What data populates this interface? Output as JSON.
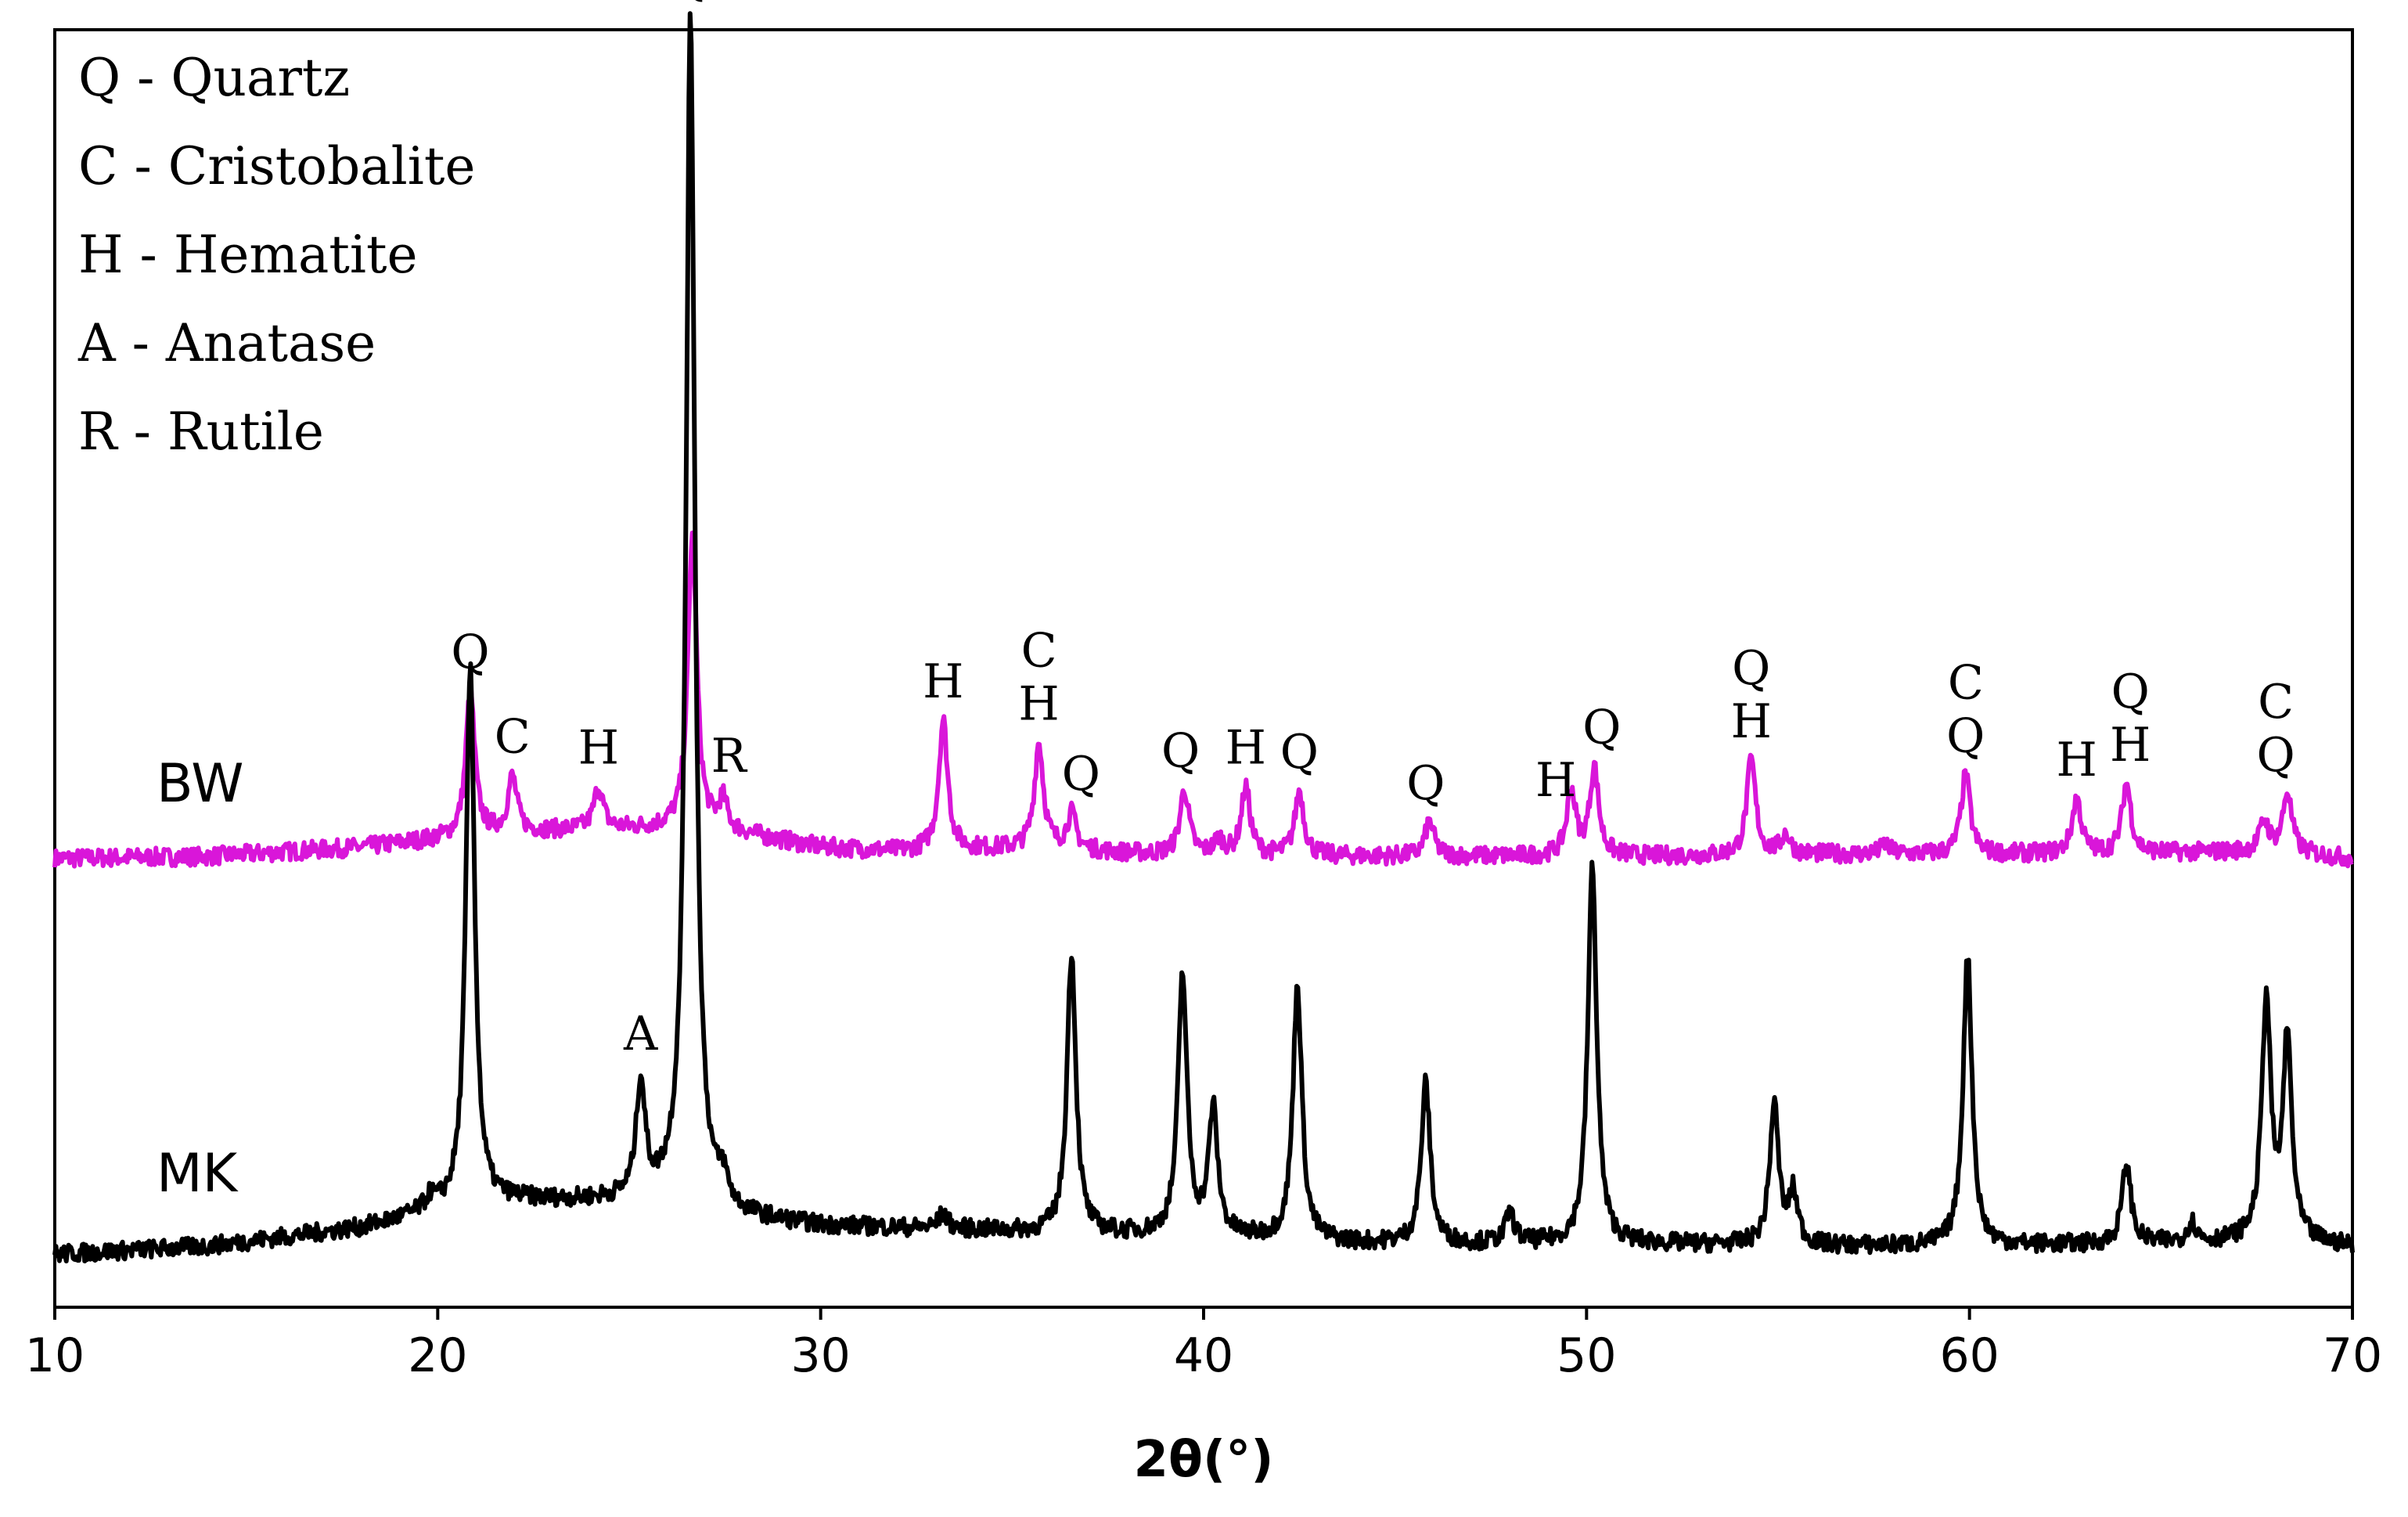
{
  "chart_data": {
    "type": "line",
    "title": "",
    "xlabel": "2θ(°)",
    "ylabel": "",
    "xlim": [
      10,
      70
    ],
    "x_ticks": [
      "10",
      "20",
      "30",
      "40",
      "50",
      "60",
      "70"
    ],
    "grid": false,
    "legend_entries": [
      "Q - Quartz",
      "C - Cristobalite",
      "H - Hematite",
      "A - Anatase",
      "R - Rutile"
    ],
    "legend_position": "top-left",
    "series": [
      {
        "name": "BW",
        "color": "#d916d9",
        "baseline_points": [
          [
            10,
            0.26
          ],
          [
            14,
            0.28
          ],
          [
            18,
            0.37
          ],
          [
            20,
            0.45
          ],
          [
            22,
            0.52
          ],
          [
            24,
            0.55
          ],
          [
            26,
            0.56
          ],
          [
            28,
            0.5
          ],
          [
            30,
            0.37
          ],
          [
            32,
            0.33
          ],
          [
            34,
            0.35
          ],
          [
            36,
            0.36
          ],
          [
            38,
            0.31
          ],
          [
            40,
            0.29
          ],
          [
            44,
            0.28
          ],
          [
            48,
            0.28
          ],
          [
            52,
            0.28
          ],
          [
            56,
            0.3
          ],
          [
            60,
            0.3
          ],
          [
            64,
            0.31
          ],
          [
            68,
            0.33
          ],
          [
            70,
            0.26
          ]
        ],
        "peaks": [
          [
            20.85,
            1.45
          ],
          [
            21.95,
            0.55
          ],
          [
            24.2,
            0.42
          ],
          [
            26.65,
            2.95
          ],
          [
            27.45,
            0.3
          ],
          [
            33.2,
            1.3
          ],
          [
            35.7,
            1.05
          ],
          [
            36.55,
            0.35
          ],
          [
            39.5,
            0.65
          ],
          [
            40.4,
            0.15
          ],
          [
            41.1,
            0.68
          ],
          [
            42.5,
            0.65
          ],
          [
            45.9,
            0.35
          ],
          [
            49.6,
            0.65
          ],
          [
            50.2,
            0.88
          ],
          [
            54.3,
            0.95
          ],
          [
            55.2,
            0.2
          ],
          [
            57.8,
            0.1
          ],
          [
            59.9,
            0.8
          ],
          [
            62.8,
            0.55
          ],
          [
            64.1,
            0.7
          ],
          [
            67.7,
            0.3
          ],
          [
            68.3,
            0.6
          ]
        ]
      },
      {
        "name": "MK",
        "color": "#000000",
        "baseline_points": [
          [
            10,
            0.02
          ],
          [
            14,
            0.1
          ],
          [
            18,
            0.28
          ],
          [
            20,
            0.45
          ],
          [
            22,
            0.55
          ],
          [
            24,
            0.55
          ],
          [
            26,
            0.55
          ],
          [
            28,
            0.38
          ],
          [
            30,
            0.3
          ],
          [
            32,
            0.28
          ],
          [
            34,
            0.26
          ],
          [
            36,
            0.23
          ],
          [
            40,
            0.2
          ],
          [
            44,
            0.13
          ],
          [
            48,
            0.12
          ],
          [
            52,
            0.12
          ],
          [
            56,
            0.1
          ],
          [
            60,
            0.1
          ],
          [
            64,
            0.12
          ],
          [
            68,
            0.15
          ],
          [
            70,
            0.1
          ]
        ],
        "peaks": [
          [
            19.8,
            0.12
          ],
          [
            20.85,
            5.35
          ],
          [
            25.3,
            1.15
          ],
          [
            26.6,
            11.85
          ],
          [
            27.45,
            0.25
          ],
          [
            33.2,
            0.15
          ],
          [
            36.55,
            2.8
          ],
          [
            39.45,
            2.6
          ],
          [
            40.25,
            1.25
          ],
          [
            42.45,
            2.55
          ],
          [
            45.8,
            1.6
          ],
          [
            48.0,
            0.3
          ],
          [
            50.15,
            3.75
          ],
          [
            54.9,
            1.4
          ],
          [
            55.4,
            0.5
          ],
          [
            59.95,
            2.9
          ],
          [
            64.1,
            0.8
          ],
          [
            65.8,
            0.2
          ],
          [
            67.75,
            2.4
          ],
          [
            68.3,
            2.0
          ]
        ]
      }
    ],
    "series_labels": [
      "BW",
      "MK"
    ],
    "annotations": [
      {
        "text": "Q",
        "x": 26.6,
        "series": "MK"
      },
      {
        "text": "A",
        "x": 25.3,
        "series": "MK"
      },
      {
        "text": "Q",
        "x": 20.85,
        "series": "BW"
      },
      {
        "text": "C",
        "x": 21.95,
        "series": "BW"
      },
      {
        "text": "H",
        "x": 24.2,
        "series": "BW"
      },
      {
        "text": "R",
        "x": 27.6,
        "series": "BW"
      },
      {
        "text": "H",
        "x": 33.2,
        "series": "BW"
      },
      {
        "text": "C\nH",
        "x": 35.7,
        "series": "BW"
      },
      {
        "text": "Q",
        "x": 36.8,
        "series": "BW"
      },
      {
        "text": "Q",
        "x": 39.4,
        "series": "BW"
      },
      {
        "text": "H",
        "x": 41.1,
        "series": "BW"
      },
      {
        "text": "Q",
        "x": 42.5,
        "series": "BW"
      },
      {
        "text": "Q",
        "x": 45.8,
        "series": "BW"
      },
      {
        "text": "H",
        "x": 49.2,
        "series": "BW"
      },
      {
        "text": "Q",
        "x": 50.4,
        "series": "BW"
      },
      {
        "text": "Q\nH",
        "x": 54.3,
        "series": "BW"
      },
      {
        "text": "C\nQ",
        "x": 59.9,
        "series": "BW"
      },
      {
        "text": "H",
        "x": 62.8,
        "series": "BW"
      },
      {
        "text": "Q\nH",
        "x": 64.2,
        "series": "BW"
      },
      {
        "text": "C\nQ",
        "x": 68.0,
        "series": "BW"
      }
    ]
  }
}
